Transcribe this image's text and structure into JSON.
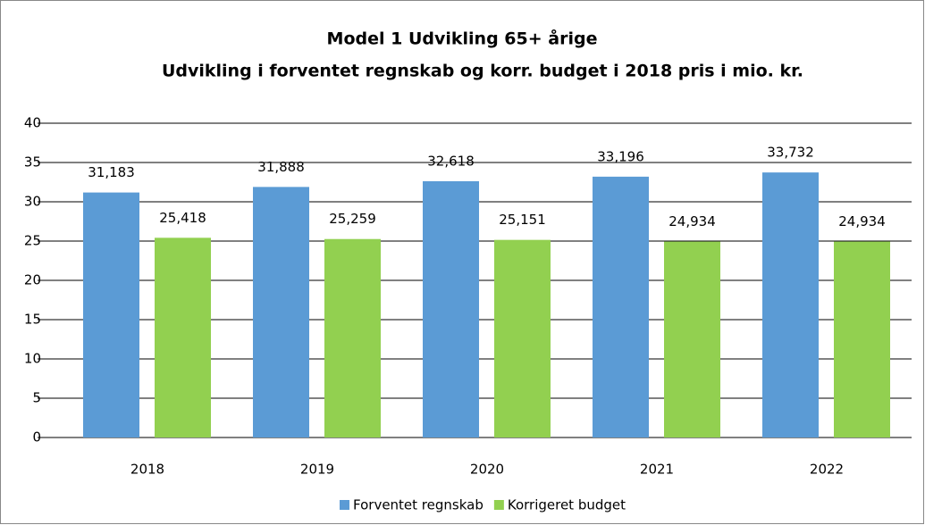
{
  "chart_data": {
    "type": "bar",
    "title": "Model 1 Udvikling 65+ årige",
    "subtitle": "Udvikling i forventet regnskab og korr. budget i 2018 pris i mio. kr.",
    "categories": [
      "2018",
      "2019",
      "2020",
      "2021",
      "2022"
    ],
    "series": [
      {
        "name": "Forventet regnskab",
        "color": "#5b9bd5",
        "values": [
          31.183,
          31.888,
          32.618,
          33.196,
          33.732
        ],
        "value_labels": [
          "31,183",
          "31,888",
          "32,618",
          "33,196",
          "33,732"
        ]
      },
      {
        "name": "Korrigeret budget",
        "color": "#92d050",
        "values": [
          25.418,
          25.259,
          25.151,
          24.934,
          24.934
        ],
        "value_labels": [
          "25,418",
          "25,259",
          "25,151",
          "24,934",
          "24,934"
        ]
      }
    ],
    "ylim": [
      0,
      40
    ],
    "yticks": [
      0,
      5,
      10,
      15,
      20,
      25,
      30,
      35,
      40
    ],
    "grid": true,
    "legend": "bottom"
  }
}
